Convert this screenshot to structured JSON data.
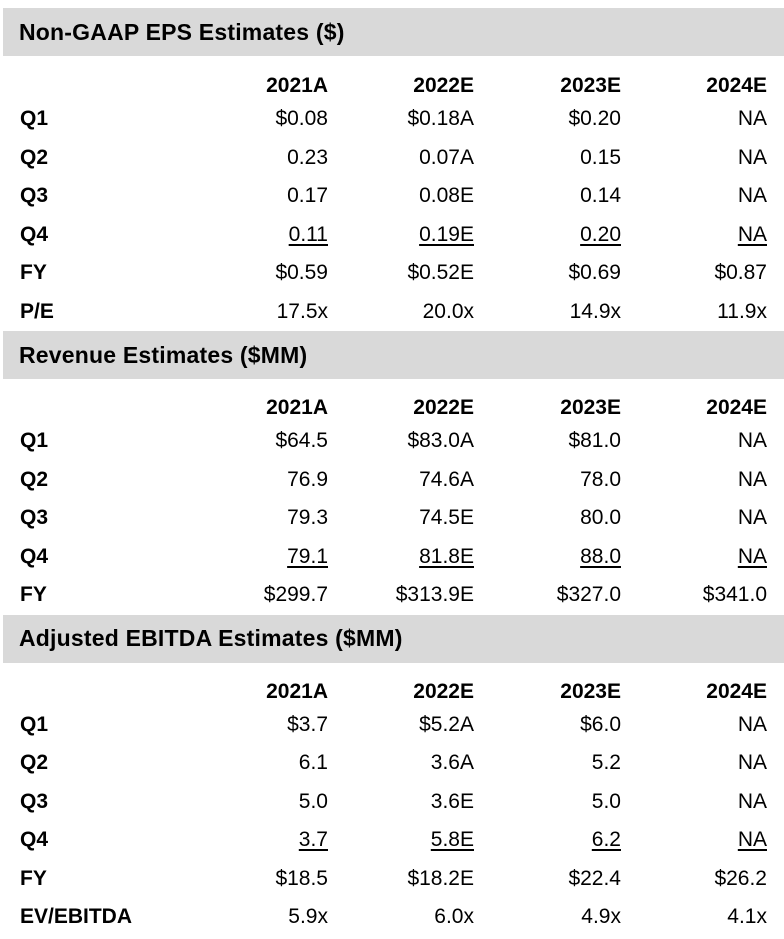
{
  "sections": [
    {
      "title": "Non-GAAP EPS Estimates ($)",
      "columns": [
        "2021A",
        "2022E",
        "2023E",
        "2024E"
      ],
      "rows": [
        {
          "label": "Q1",
          "values": [
            "$0.08",
            "$0.18A",
            "$0.20",
            "NA"
          ]
        },
        {
          "label": "Q2",
          "values": [
            "0.23",
            "0.07A",
            "0.15",
            "NA"
          ]
        },
        {
          "label": "Q3",
          "values": [
            "0.17",
            "0.08E",
            "0.14",
            "NA"
          ]
        },
        {
          "label": "Q4",
          "values": [
            "0.11",
            "0.19E",
            "0.20",
            "NA"
          ]
        },
        {
          "label": "FY",
          "values": [
            "$0.59",
            "$0.52E",
            "$0.69",
            "$0.87"
          ]
        },
        {
          "label": "P/E",
          "values": [
            "17.5x",
            "20.0x",
            "14.9x",
            "11.9x"
          ]
        }
      ]
    },
    {
      "title": "Revenue Estimates ($MM)",
      "columns": [
        "2021A",
        "2022E",
        "2023E",
        "2024E"
      ],
      "rows": [
        {
          "label": "Q1",
          "values": [
            "$64.5",
            "$83.0A",
            "$81.0",
            "NA"
          ]
        },
        {
          "label": "Q2",
          "values": [
            "76.9",
            "74.6A",
            "78.0",
            "NA"
          ]
        },
        {
          "label": "Q3",
          "values": [
            "79.3",
            "74.5E",
            "80.0",
            "NA"
          ]
        },
        {
          "label": "Q4",
          "values": [
            "79.1",
            "81.8E",
            "88.0",
            "NA"
          ]
        },
        {
          "label": "FY",
          "values": [
            "$299.7",
            "$313.9E",
            "$327.0",
            "$341.0"
          ]
        }
      ]
    },
    {
      "title": "Adjusted EBITDA Estimates ($MM)",
      "columns": [
        "2021A",
        "2022E",
        "2023E",
        "2024E"
      ],
      "rows": [
        {
          "label": "Q1",
          "values": [
            "$3.7",
            "$5.2A",
            "$6.0",
            "NA"
          ]
        },
        {
          "label": "Q2",
          "values": [
            "6.1",
            "3.6A",
            "5.2",
            "NA"
          ]
        },
        {
          "label": "Q3",
          "values": [
            "5.0",
            "3.6E",
            "5.0",
            "NA"
          ]
        },
        {
          "label": "Q4",
          "values": [
            "3.7",
            "5.8E",
            "6.2",
            "NA"
          ]
        },
        {
          "label": "FY",
          "values": [
            "$18.5",
            "$18.2E",
            "$22.4",
            "$26.2"
          ]
        },
        {
          "label": "EV/EBITDA",
          "values": [
            "5.9x",
            "6.0x",
            "4.9x",
            "4.1x"
          ]
        }
      ]
    }
  ]
}
